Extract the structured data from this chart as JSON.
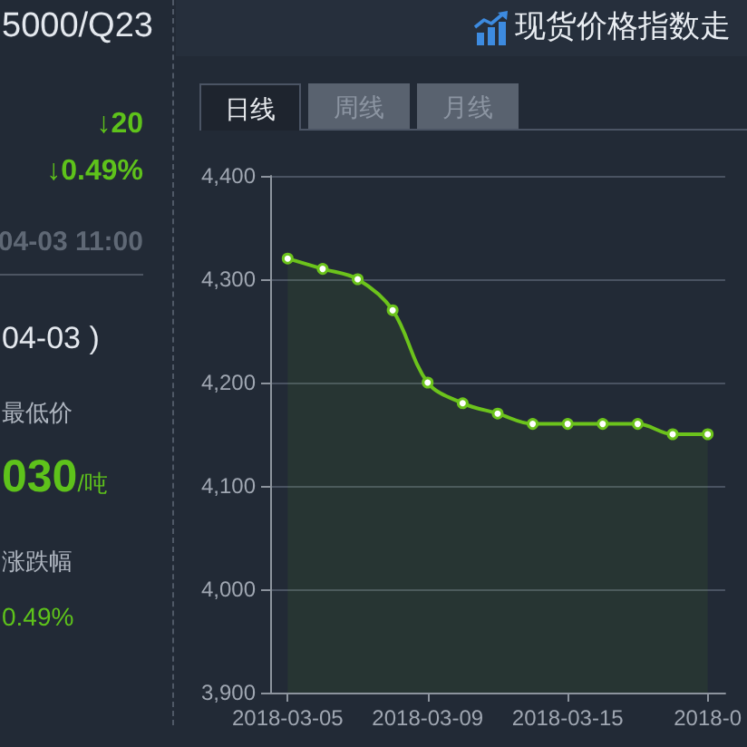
{
  "chart_data": [
    {
      "type": "other",
      "annotations": [
        "5000/Q23",
        "↓20",
        "↓0.49%",
        "04-03 11:00",
        "04-03 )",
        "最低价",
        "030",
        "/吨",
        "涨跌幅",
        "0.49%"
      ]
    },
    {
      "type": "area",
      "title": "现货价格指数走",
      "annotations": [
        "日线",
        "周线",
        "月线"
      ],
      "categories": [
        "2018-03-05",
        null,
        null,
        null,
        "2018-03-09",
        null,
        null,
        null,
        "2018-03-15",
        null,
        null,
        null,
        "2018-0"
      ],
      "values": [
        4320,
        4310,
        4300,
        4270,
        4200,
        4180,
        4170,
        4160,
        4160,
        4160,
        4160,
        4150,
        4150
      ],
      "color": "#6cc31c",
      "ylim": [
        3900,
        4400
      ],
      "yticks": [
        {
          "value": 3900,
          "label": "3,900"
        },
        {
          "value": 4000,
          "label": "4,000"
        },
        {
          "value": 4100,
          "label": "4,100"
        },
        {
          "value": 4200,
          "label": "4,200"
        },
        {
          "value": 4300,
          "label": "4,300"
        },
        {
          "value": 4400,
          "label": "4,400"
        }
      ],
      "grid": "y",
      "marker": "circle"
    }
  ]
}
